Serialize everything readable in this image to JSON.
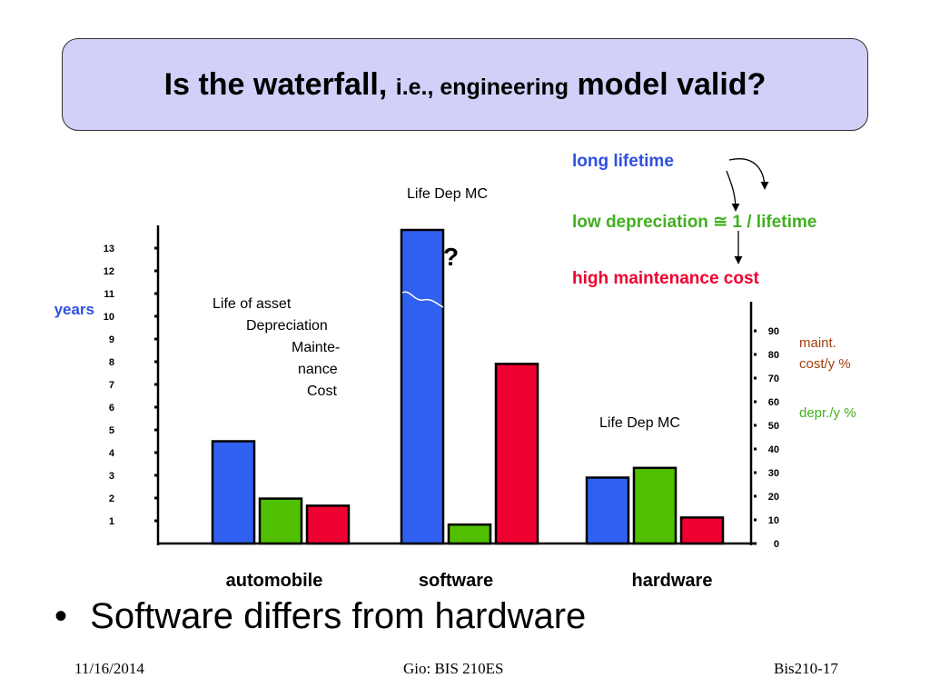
{
  "slide": {
    "title_part1": "Is the waterfall, ",
    "title_part2": "i.e., engineering",
    "title_part3": " model valid?",
    "bullet_marker": "•",
    "bullet_text": "Software differs from hardware",
    "footer_date": "11/16/2014",
    "footer_center": "Gio: BIS 210ES",
    "footer_right": "Bis210-17"
  },
  "annotations": {
    "long_lifetime": "long  lifetime",
    "low_depreciation": "low depreciation ≅ 1 / lifetime",
    "high_maintenance": "high maintenance cost",
    "question_mark": "?",
    "life_dep_mc_software": "Life Dep MC",
    "life_dep_mc_hardware": "Life Dep MC",
    "maint_line1": "maint.",
    "maint_line2": "cost/y %",
    "depr": "depr./y %"
  },
  "colors": {
    "title_bg": "#d0d0f8",
    "life": "#3060f0",
    "depreciation": "#50c000",
    "maintenance": "#ee0030",
    "annotation_blue": "#3050e0",
    "annotation_green": "#40b020",
    "annotation_red": "#ee0030",
    "annotation_brown": "#a04010"
  },
  "chart_data": {
    "type": "bar",
    "categories": [
      "automobile",
      "software",
      "hardware"
    ],
    "left_axis": {
      "label": "years",
      "ticks": [
        1,
        2,
        3,
        4,
        5,
        6,
        7,
        8,
        9,
        10,
        11,
        12,
        13
      ]
    },
    "right_axis": {
      "ticks": [
        0,
        10,
        20,
        30,
        40,
        50,
        60,
        70,
        80,
        90
      ]
    },
    "legend": [
      "Life of asset",
      "Depreciation",
      "Mainte-",
      "nance",
      "Cost"
    ],
    "series": [
      {
        "key": "life",
        "axis": "years",
        "values": [
          4.5,
          13.8,
          2.9
        ]
      },
      {
        "key": "depreciation",
        "axis": "percent",
        "values": [
          19,
          8,
          32
        ]
      },
      {
        "key": "maintenance",
        "axis": "percent",
        "values": [
          16,
          76,
          11
        ]
      }
    ]
  }
}
